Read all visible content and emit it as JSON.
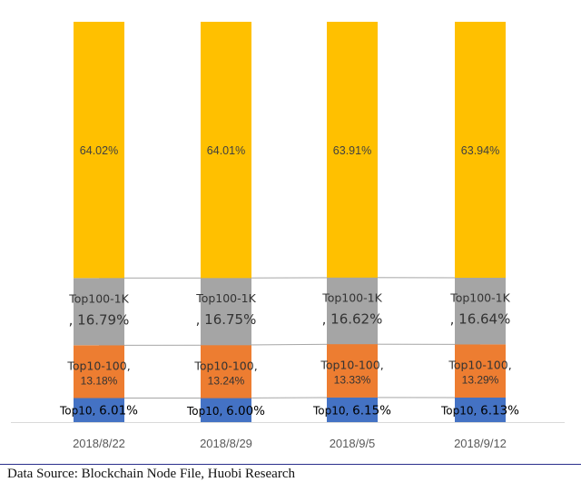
{
  "chart_data": {
    "type": "bar",
    "stacked": true,
    "percent_stacked": true,
    "categories": [
      "2018/8/22",
      "2018/8/29",
      "2018/9/5",
      "2018/9/12"
    ],
    "series": [
      {
        "name": "Top10",
        "color": "#4472C4",
        "values": [
          6.01,
          6.0,
          6.15,
          6.13
        ],
        "labels_prefix": [
          "Top10, ",
          "Top10, ",
          "Top10, ",
          "Top10, "
        ],
        "labels_value": [
          "6.01%",
          "6.00%",
          "6.15%",
          "6.13%"
        ]
      },
      {
        "name": "Top10-100",
        "color": "#ED7D31",
        "values": [
          13.18,
          13.24,
          13.33,
          13.29
        ],
        "labels_prefix": [
          "Top10-100,",
          "Top10-100,",
          "Top10-100,",
          "Top10-100,"
        ],
        "labels_value": [
          "13.18%",
          "13.24%",
          "13.33%",
          "13.29%"
        ]
      },
      {
        "name": "Top100-1K",
        "color": "#A5A5A5",
        "values": [
          16.79,
          16.75,
          16.62,
          16.64
        ],
        "labels_prefix": [
          "Top100-1K",
          "Top100-1K",
          "Top100-1K",
          "Top100-1K"
        ],
        "labels_value": [
          ", 16.79%",
          ", 16.75%",
          ", 16.62%",
          ", 16.64%"
        ]
      },
      {
        "name": "",
        "color": "#FFC000",
        "values": [
          64.02,
          64.01,
          63.91,
          63.94
        ],
        "labels_value": [
          "64.02%",
          "64.01%",
          "63.91%",
          "63.94%"
        ]
      }
    ],
    "title": "",
    "xlabel": "",
    "ylabel": "",
    "ylim": [
      0,
      100
    ],
    "grid": false,
    "legend": "none",
    "series_lines": true
  },
  "source": "Data Source: Blockchain Node File, Huobi Research"
}
